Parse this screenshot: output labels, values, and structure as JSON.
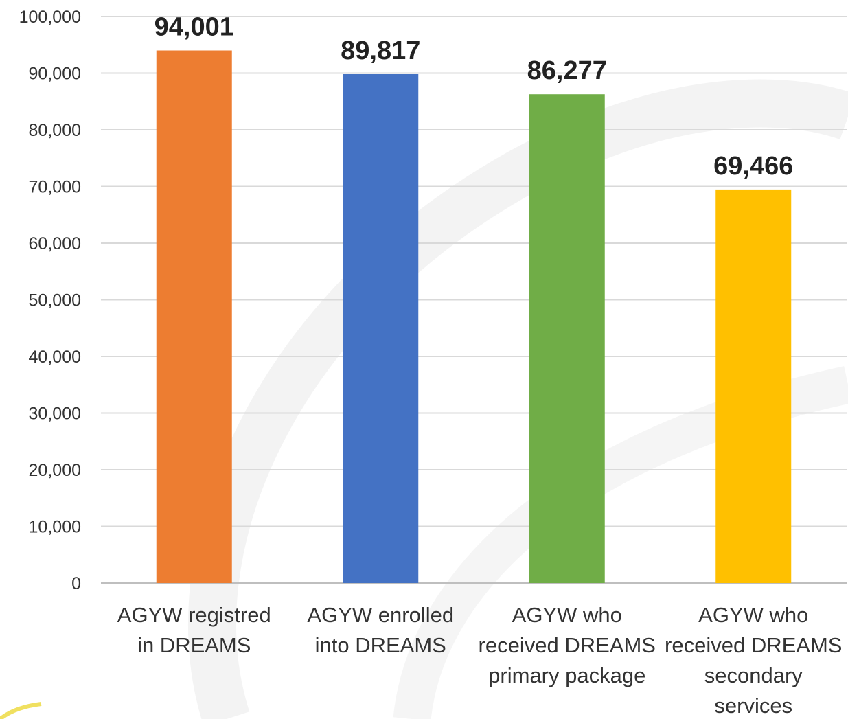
{
  "chart_data": {
    "type": "bar",
    "title": "",
    "xlabel": "",
    "ylabel": "",
    "categories": [
      "AGYW registred in DREAMS",
      "AGYW enrolled into DREAMS",
      "AGYW who received DREAMS primary package",
      "AGYW who received DREAMS secondary services"
    ],
    "category_lines": [
      [
        "AGYW registred",
        "in DREAMS"
      ],
      [
        "AGYW enrolled",
        "into DREAMS"
      ],
      [
        "AGYW who",
        "received DREAMS",
        "primary package"
      ],
      [
        "AGYW who",
        "received DREAMS",
        "secondary",
        "services"
      ]
    ],
    "values": [
      94001,
      89817,
      86277,
      69466
    ],
    "data_labels": [
      "94,001",
      "89,817",
      "86,277",
      "69,466"
    ],
    "colors": [
      "#ED7D31",
      "#4472C4",
      "#70AD47",
      "#FFC000"
    ],
    "ylim": [
      0,
      100000
    ],
    "yticks": [
      0,
      10000,
      20000,
      30000,
      40000,
      50000,
      60000,
      70000,
      80000,
      90000,
      100000
    ],
    "ytick_labels": [
      "0",
      "10,000",
      "20,000",
      "30,000",
      "40,000",
      "50,000",
      "60,000",
      "70,000",
      "80,000",
      "90,000",
      "100,000"
    ],
    "grid": true,
    "legend": "none"
  }
}
